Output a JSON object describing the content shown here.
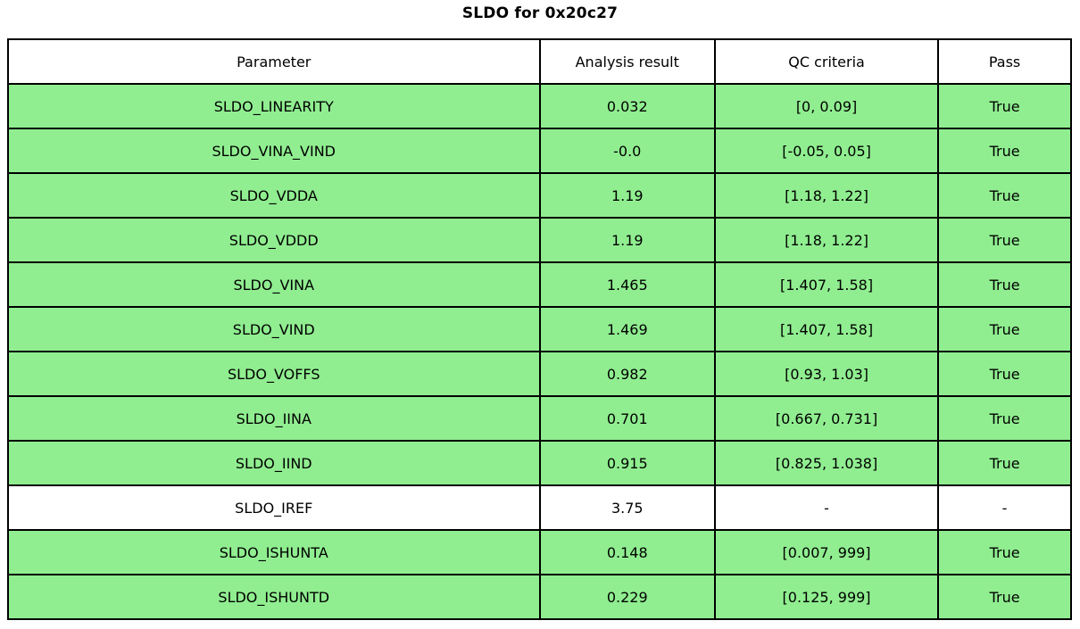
{
  "title": "SLDO for 0x20c27",
  "table": {
    "headers": [
      "Parameter",
      "Analysis result",
      "QC criteria",
      "Pass"
    ],
    "rows": [
      {
        "parameter": "SLDO_LINEARITY",
        "result": "0.032",
        "criteria": "[0, 0.09]",
        "pass": "True",
        "highlight": true
      },
      {
        "parameter": "SLDO_VINA_VIND",
        "result": "-0.0",
        "criteria": "[-0.05, 0.05]",
        "pass": "True",
        "highlight": true
      },
      {
        "parameter": "SLDO_VDDA",
        "result": "1.19",
        "criteria": "[1.18, 1.22]",
        "pass": "True",
        "highlight": true
      },
      {
        "parameter": "SLDO_VDDD",
        "result": "1.19",
        "criteria": "[1.18, 1.22]",
        "pass": "True",
        "highlight": true
      },
      {
        "parameter": "SLDO_VINA",
        "result": "1.465",
        "criteria": "[1.407, 1.58]",
        "pass": "True",
        "highlight": true
      },
      {
        "parameter": "SLDO_VIND",
        "result": "1.469",
        "criteria": "[1.407, 1.58]",
        "pass": "True",
        "highlight": true
      },
      {
        "parameter": "SLDO_VOFFS",
        "result": "0.982",
        "criteria": "[0.93, 1.03]",
        "pass": "True",
        "highlight": true
      },
      {
        "parameter": "SLDO_IINA",
        "result": "0.701",
        "criteria": "[0.667, 0.731]",
        "pass": "True",
        "highlight": true
      },
      {
        "parameter": "SLDO_IIND",
        "result": "0.915",
        "criteria": "[0.825, 1.038]",
        "pass": "True",
        "highlight": true
      },
      {
        "parameter": "SLDO_IREF",
        "result": "3.75",
        "criteria": "-",
        "pass": "-",
        "highlight": false
      },
      {
        "parameter": "SLDO_ISHUNTA",
        "result": "0.148",
        "criteria": "[0.007, 999]",
        "pass": "True",
        "highlight": true
      },
      {
        "parameter": "SLDO_ISHUNTD",
        "result": "0.229",
        "criteria": "[0.125, 999]",
        "pass": "True",
        "highlight": true
      }
    ],
    "colors": {
      "pass_row_bg": "#90EE90",
      "neutral_row_bg": "#FFFFFF",
      "border": "#000000"
    }
  },
  "chart_data": {
    "type": "table",
    "title": "SLDO for 0x20c27",
    "columns": [
      "Parameter",
      "Analysis result",
      "QC criteria",
      "Pass"
    ],
    "rows": [
      [
        "SLDO_LINEARITY",
        0.032,
        "[0, 0.09]",
        "True"
      ],
      [
        "SLDO_VINA_VIND",
        -0.0,
        "[-0.05, 0.05]",
        "True"
      ],
      [
        "SLDO_VDDA",
        1.19,
        "[1.18, 1.22]",
        "True"
      ],
      [
        "SLDO_VDDD",
        1.19,
        "[1.18, 1.22]",
        "True"
      ],
      [
        "SLDO_VINA",
        1.465,
        "[1.407, 1.58]",
        "True"
      ],
      [
        "SLDO_VIND",
        1.469,
        "[1.407, 1.58]",
        "True"
      ],
      [
        "SLDO_VOFFS",
        0.982,
        "[0.93, 1.03]",
        "True"
      ],
      [
        "SLDO_IINA",
        0.701,
        "[0.667, 0.731]",
        "True"
      ],
      [
        "SLDO_IIND",
        0.915,
        "[0.825, 1.038]",
        "True"
      ],
      [
        "SLDO_IREF",
        3.75,
        "-",
        "-"
      ],
      [
        "SLDO_ISHUNTA",
        0.148,
        "[0.007, 999]",
        "True"
      ],
      [
        "SLDO_ISHUNTD",
        0.229,
        "[0.125, 999]",
        "True"
      ]
    ],
    "layout": {
      "highlight_color_passing_rows": "#90EE90",
      "grid": true,
      "legend": false
    }
  }
}
